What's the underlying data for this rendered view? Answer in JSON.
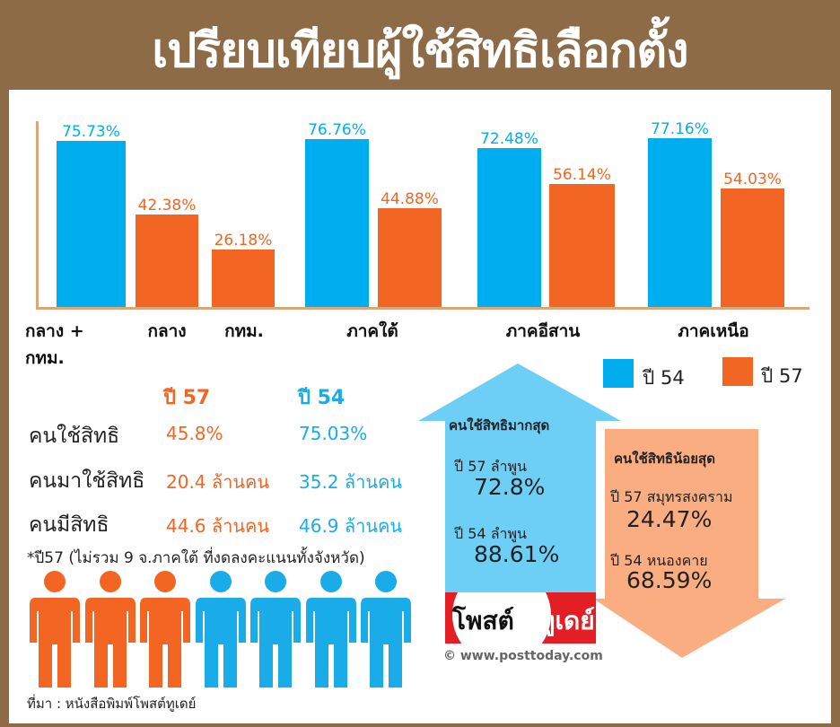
{
  "title": "เปรียบเทียบผู้ใช้สิทธิเลือกตั้ง",
  "chart_data": {
    "type": "bar",
    "title": "เปรียบเทียบผู้ใช้สิทธิเลือกตั้ง",
    "categories": [
      "กลาง + กทม.",
      "กลาง",
      "กทม.",
      "ภาคใต้",
      "ภาคอีสาน",
      "ภาคเหนือ"
    ],
    "series": [
      {
        "name": "ปี 54",
        "color": "#00aeef",
        "values": [
          75.73,
          null,
          null,
          76.76,
          72.48,
          77.16
        ]
      },
      {
        "name": "ปี 57",
        "color": "#f26522",
        "values": [
          null,
          42.38,
          26.18,
          44.88,
          56.14,
          54.03
        ]
      }
    ],
    "bar_labels": [
      "75.73%",
      "42.38%",
      "26.18%",
      "76.76%",
      "44.88%",
      "72.48%",
      "56.14%",
      "77.16%",
      "54.03%"
    ],
    "ylim": [
      0,
      100
    ],
    "legend_position": "bottom-right",
    "grid": false
  },
  "legend": {
    "y54": "ปี 54",
    "y57": "ปี 57"
  },
  "summary": {
    "col57": "ปี 57",
    "col54": "ปี 54",
    "rows": [
      {
        "label": "คนใช้สิทธิ",
        "v57": "45.8%",
        "v54": "75.03%"
      },
      {
        "label": "คนมาใช้สิทธิ",
        "v57": "20.4 ล้านคน",
        "v54": "35.2 ล้านคน"
      },
      {
        "label": "คนมีสิทธิ",
        "v57": "44.6 ล้านคน",
        "v54": "46.9 ล้านคน"
      }
    ],
    "note": "*ปี57 (ไม่รวม 9 จ.ภาคใต้ ที่งดลงคะแนนทั้งจังหวัด)"
  },
  "most": {
    "title": "คนใช้สิทธิมากสุด",
    "l57": "ปี 57 ลำพูน",
    "v57": "72.8%",
    "l54": "ปี 54 ลำพูน",
    "v54": "88.61%"
  },
  "least": {
    "title": "คนใช้สิทธิน้อยสุด",
    "l57": "ปี 57 สมุทรสงคราม",
    "v57": "24.47%",
    "l54": "ปี 54 หนองคาย",
    "v54": "68.59%"
  },
  "logo": {
    "part1": "โพสต์",
    "part2": "ทูเดย์"
  },
  "site": "© www.posttoday.com",
  "source": "ที่มา : หนังสือพิมพ์โพสต์ทูเดย์"
}
